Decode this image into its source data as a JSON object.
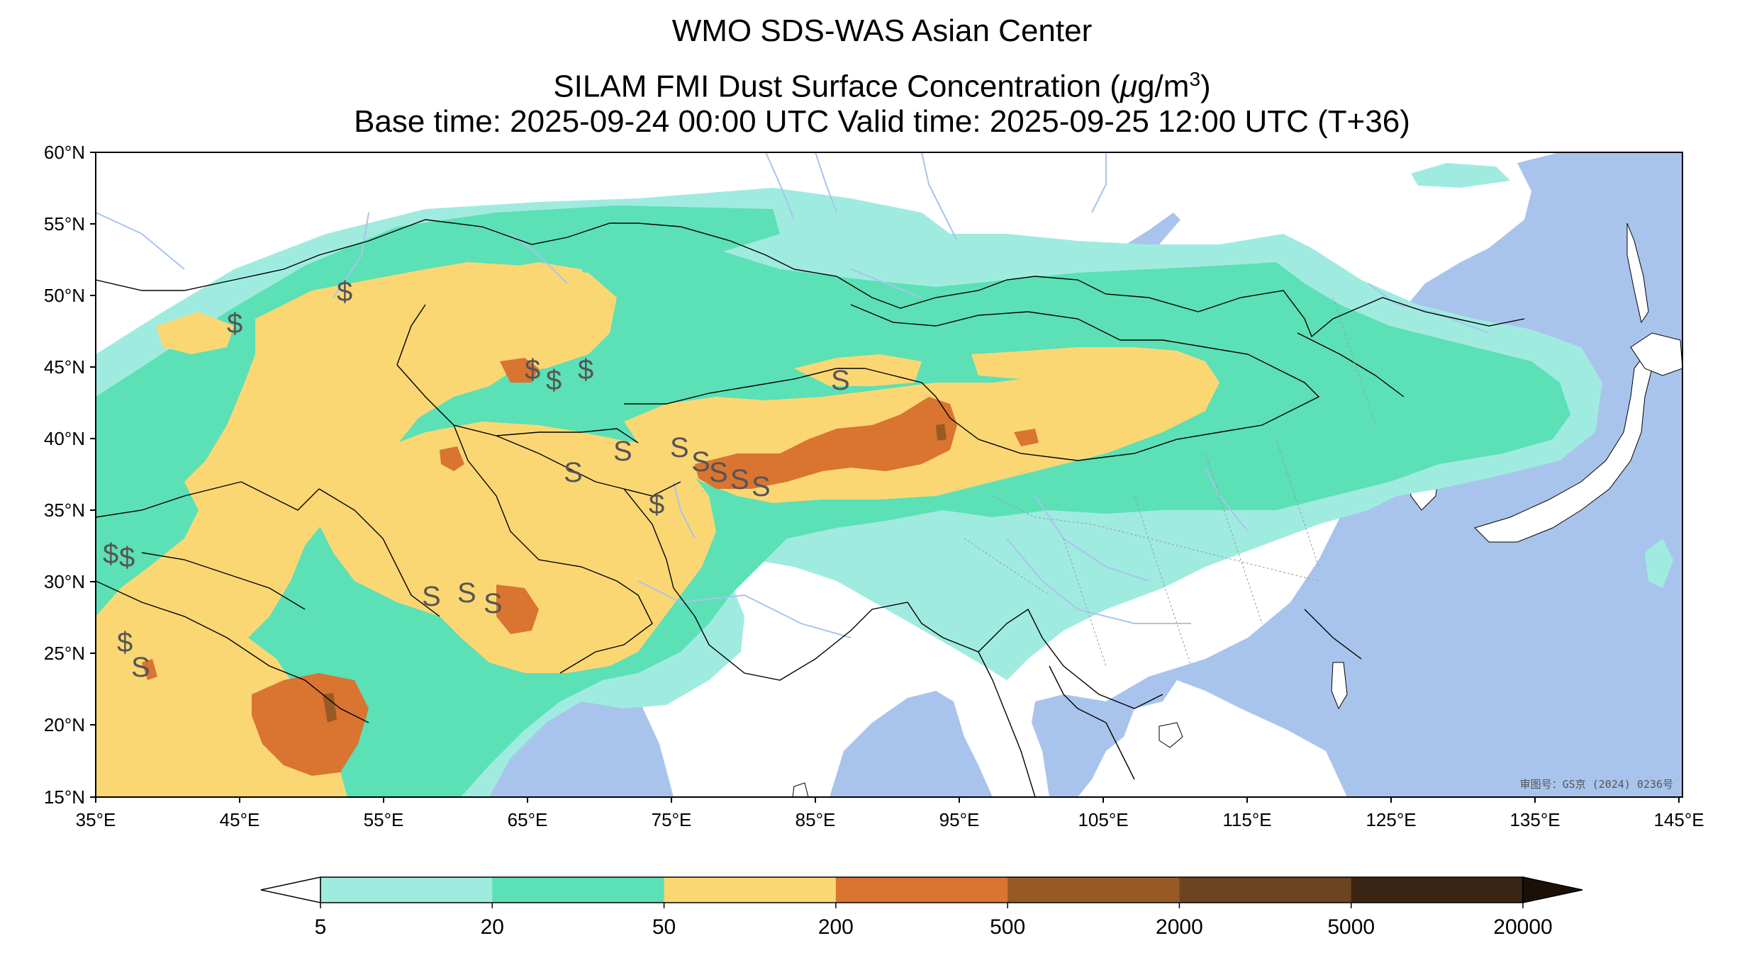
{
  "title": {
    "line1": "WMO SDS-WAS Asian Center",
    "line2_prefix": "SILAM FMI Dust Surface Concentration (",
    "line2_mu": "μ",
    "line2_unit": "g/m",
    "line2_sup": "3",
    "line2_suffix": ")",
    "line3": "Base time: 2025-09-24 00:00 UTC Valid time: 2025-09-25 12:00 UTC (T+36)"
  },
  "map": {
    "lon_range": [
      35,
      150
    ],
    "lat_range": [
      15,
      60
    ],
    "lat_ticks": [
      "60°N",
      "55°N",
      "50°N",
      "45°N",
      "40°N",
      "35°N",
      "30°N",
      "25°N",
      "20°N",
      "15°N"
    ],
    "lon_ticks": [
      "35°E",
      "45°E",
      "55°E",
      "65°E",
      "75°E",
      "85°E",
      "95°E",
      "105°E",
      "115°E",
      "125°E",
      "135°E",
      "145°E"
    ],
    "watermark": "审图号：GS京 (2024) 0236号",
    "station_symbol_dollar": "$",
    "station_symbol_s": "S",
    "colors": {
      "ocean": "#a9c4ec",
      "land": "#ffffff",
      "river": "#a9c4ec",
      "border": "#000000"
    }
  },
  "colorbar": {
    "labels": [
      "5",
      "20",
      "50",
      "200",
      "500",
      "2000",
      "5000",
      "20000"
    ],
    "colors": [
      "#a0ebe0",
      "#5ce0b6",
      "#fbd774",
      "#d97431",
      "#985a25",
      "#6c4420",
      "#3a2414"
    ],
    "under_color": "#ffffff",
    "over_color": "#1a1008"
  }
}
